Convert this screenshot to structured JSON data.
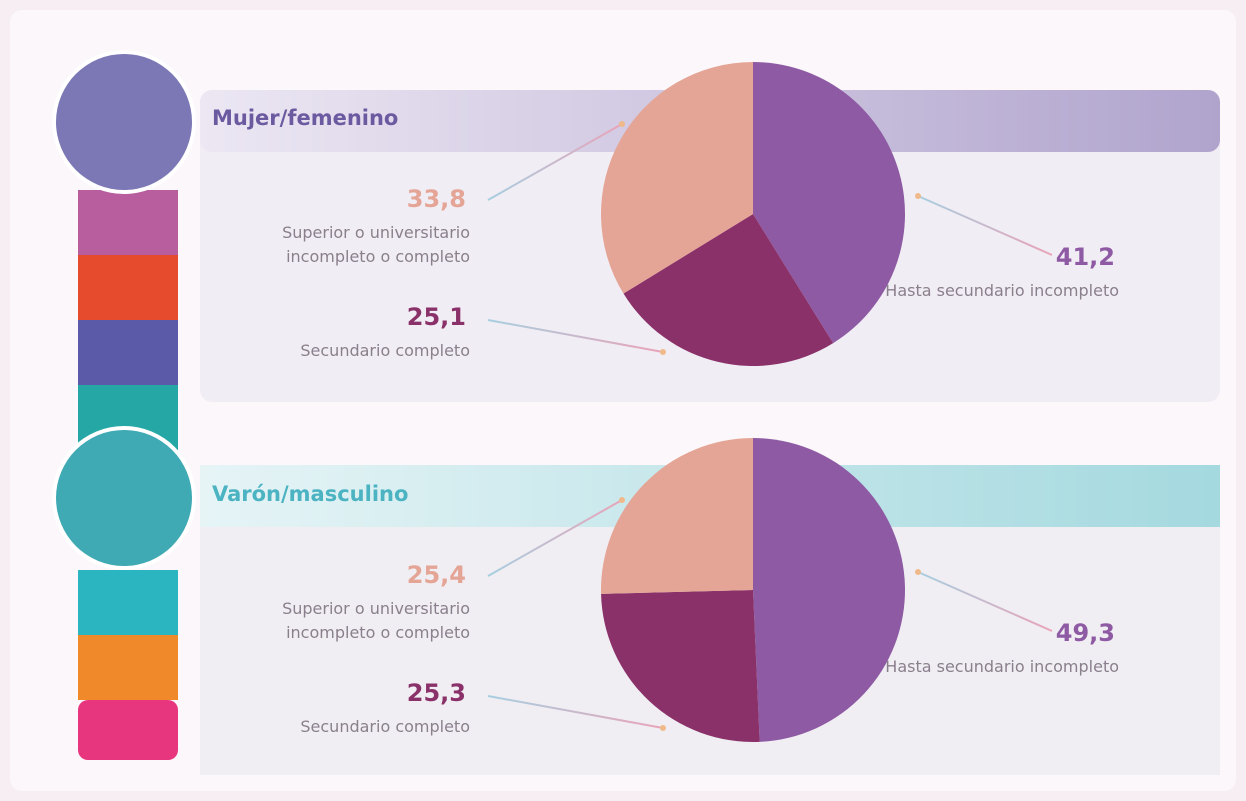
{
  "chart_data": [
    {
      "type": "pie",
      "title": "Mujer/femenino",
      "title_color": "#6b5aa0",
      "categories": [
        "Hasta secundario incompleto",
        "Secundario completo",
        "Superior o universitario incompleto o completo"
      ],
      "values": [
        41.2,
        25.1,
        33.8
      ],
      "value_labels": [
        "41,2",
        "25,1",
        "33,8"
      ],
      "colors": [
        "#8e5aa3",
        "#8a3169",
        "#e4a596"
      ]
    },
    {
      "type": "pie",
      "title": "Varón/masculino",
      "title_color": "#4bb3c1",
      "categories": [
        "Hasta secundario incompleto",
        "Secundario completo",
        "Superior o universitario incompleto o completo"
      ],
      "values": [
        49.3,
        25.3,
        25.4
      ],
      "value_labels": [
        "49,3",
        "25,3",
        "25,4"
      ],
      "colors": [
        "#8e5aa3",
        "#8a3169",
        "#e4a596"
      ]
    }
  ]
}
